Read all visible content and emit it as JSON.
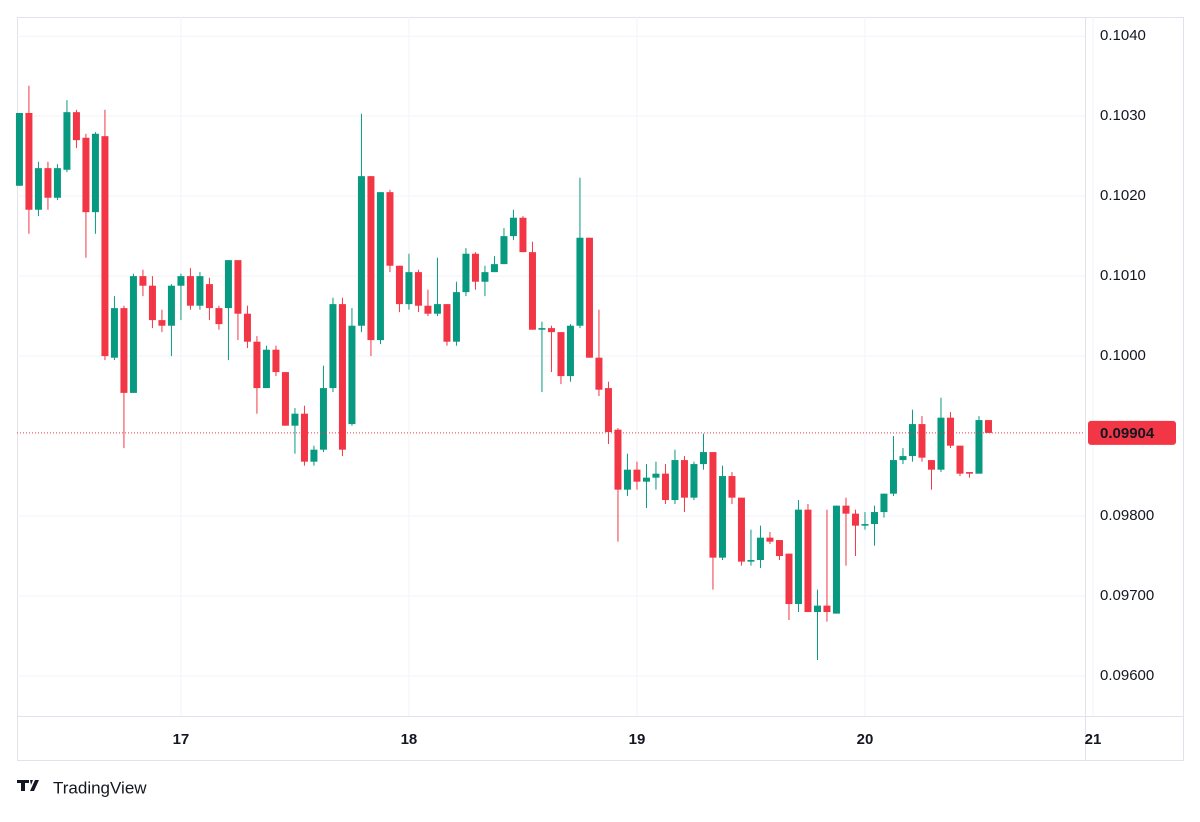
{
  "chart_data": {
    "type": "candlestick",
    "up_color": "#089981",
    "down_color": "#f23645",
    "grid": true,
    "xlim": [
      16.281,
      20.965
    ],
    "xticks": [
      17,
      18,
      19,
      20,
      21
    ],
    "ylim": [
      0.0955,
      0.10424
    ],
    "yticks": [
      {
        "value": 0.096,
        "label": "0.09600"
      },
      {
        "value": 0.097,
        "label": "0.09700"
      },
      {
        "value": 0.098,
        "label": "0.09800"
      },
      {
        "value": 0.1,
        "label": "0.1000"
      },
      {
        "value": 0.101,
        "label": "0.1010"
      },
      {
        "value": 0.102,
        "label": "0.1020"
      },
      {
        "value": 0.103,
        "label": "0.1030"
      },
      {
        "value": 0.104,
        "label": "0.1040"
      }
    ],
    "last_price": 0.09904,
    "x": [
      16.2917,
      16.3333,
      16.375,
      16.4167,
      16.4583,
      16.5,
      16.5417,
      16.5833,
      16.625,
      16.6667,
      16.7083,
      16.75,
      16.7917,
      16.8333,
      16.875,
      16.9167,
      16.9583,
      17,
      17.0417,
      17.0833,
      17.125,
      17.1667,
      17.2083,
      17.25,
      17.2917,
      17.3333,
      17.375,
      17.4167,
      17.4583,
      17.5,
      17.5417,
      17.5833,
      17.625,
      17.6667,
      17.7083,
      17.75,
      17.7917,
      17.8333,
      17.875,
      17.9167,
      17.9583,
      18,
      18.0417,
      18.0833,
      18.125,
      18.1667,
      18.2083,
      18.25,
      18.2917,
      18.3333,
      18.375,
      18.4167,
      18.4583,
      18.5,
      18.5417,
      18.5833,
      18.625,
      18.6667,
      18.7083,
      18.75,
      18.7917,
      18.8333,
      18.875,
      18.9167,
      18.9583,
      19,
      19.0417,
      19.0833,
      19.125,
      19.1667,
      19.2083,
      19.25,
      19.2917,
      19.3333,
      19.375,
      19.4167,
      19.4583,
      19.5,
      19.5417,
      19.5833,
      19.625,
      19.6667,
      19.7083,
      19.75,
      19.7917,
      19.8333,
      19.875,
      19.9167,
      19.9583,
      20,
      20.0417,
      20.0833,
      20.125,
      20.1667,
      20.2083,
      20.25,
      20.2917,
      20.3333,
      20.375,
      20.4167,
      20.4583,
      20.5,
      20.5417
    ],
    "open": [
      0.10213,
      0.10304,
      0.10183,
      0.10235,
      0.10198,
      0.10233,
      0.10305,
      0.10273,
      0.1018,
      0.10275,
      0.09998,
      0.1006,
      0.09954,
      0.101,
      0.10088,
      0.10045,
      0.10038,
      0.10088,
      0.101,
      0.10063,
      0.1009,
      0.1006,
      0.1006,
      0.1012,
      0.10053,
      0.10018,
      0.0996,
      0.10008,
      0.0998,
      0.09913,
      0.09928,
      0.09868,
      0.09883,
      0.0996,
      0.10065,
      0.09915,
      0.10038,
      0.10225,
      0.1002,
      0.10205,
      0.10113,
      0.10065,
      0.10105,
      0.10063,
      0.10053,
      0.10065,
      0.10018,
      0.1008,
      0.10128,
      0.10093,
      0.10105,
      0.10115,
      0.1015,
      0.10173,
      0.1013,
      0.10033,
      0.10035,
      0.1003,
      0.09975,
      0.10038,
      0.10148,
      0.09998,
      0.0996,
      0.09908,
      0.09833,
      0.09858,
      0.09843,
      0.09848,
      0.09853,
      0.0982,
      0.0987,
      0.09823,
      0.09865,
      0.0988,
      0.09748,
      0.0985,
      0.09823,
      0.09743,
      0.09745,
      0.09773,
      0.0977,
      0.09753,
      0.0969,
      0.09808,
      0.0968,
      0.09688,
      0.09678,
      0.09813,
      0.09803,
      0.09788,
      0.0979,
      0.09805,
      0.09828,
      0.0987,
      0.09875,
      0.09915,
      0.0987,
      0.09858,
      0.09923,
      0.09888,
      0.09855,
      0.09853,
      0.0992
    ],
    "high": [
      0.10304,
      0.10338,
      0.10243,
      0.10243,
      0.1024,
      0.1032,
      0.10308,
      0.10278,
      0.1028,
      0.10308,
      0.10075,
      0.10063,
      0.10103,
      0.10108,
      0.101,
      0.10058,
      0.1009,
      0.10103,
      0.1011,
      0.10105,
      0.10098,
      0.10063,
      0.1012,
      0.1012,
      0.10063,
      0.10025,
      0.10013,
      0.10013,
      0.0998,
      0.09935,
      0.09938,
      0.09888,
      0.09988,
      0.10073,
      0.10073,
      0.1006,
      0.10303,
      0.10225,
      0.10205,
      0.10208,
      0.10113,
      0.10128,
      0.10108,
      0.10083,
      0.10123,
      0.10065,
      0.10093,
      0.10135,
      0.1013,
      0.10113,
      0.10125,
      0.1016,
      0.10183,
      0.10175,
      0.10143,
      0.10043,
      0.10038,
      0.1003,
      0.1004,
      0.10223,
      0.10148,
      0.10058,
      0.09968,
      0.0991,
      0.09878,
      0.09868,
      0.09865,
      0.09868,
      0.09865,
      0.09883,
      0.09875,
      0.09868,
      0.09903,
      0.0988,
      0.09863,
      0.09855,
      0.09823,
      0.09783,
      0.09788,
      0.0978,
      0.0977,
      0.09753,
      0.0982,
      0.09815,
      0.09708,
      0.09808,
      0.09813,
      0.09823,
      0.09808,
      0.09805,
      0.09813,
      0.09828,
      0.099,
      0.09885,
      0.09933,
      0.09925,
      0.0987,
      0.09948,
      0.0993,
      0.09888,
      0.09855,
      0.09925,
      0.0992
    ],
    "low": [
      0.10213,
      0.10153,
      0.10175,
      0.10183,
      0.10195,
      0.1023,
      0.1026,
      0.10123,
      0.10153,
      0.09995,
      0.09995,
      0.09885,
      0.09954,
      0.10075,
      0.10035,
      0.1003,
      0.1,
      0.10045,
      0.10058,
      0.10058,
      0.10045,
      0.10033,
      0.09995,
      0.1002,
      0.1001,
      0.09928,
      0.0996,
      0.09975,
      0.09913,
      0.09878,
      0.09863,
      0.09863,
      0.0988,
      0.09955,
      0.09875,
      0.09913,
      0.1003,
      0.1,
      0.10015,
      0.10105,
      0.10055,
      0.10058,
      0.10055,
      0.1005,
      0.1005,
      0.10013,
      0.10013,
      0.10075,
      0.10083,
      0.10075,
      0.10105,
      0.10115,
      0.10145,
      0.1013,
      0.10033,
      0.09955,
      0.0998,
      0.09965,
      0.09968,
      0.10035,
      0.09998,
      0.0995,
      0.0989,
      0.09768,
      0.09825,
      0.09833,
      0.0981,
      0.09833,
      0.09815,
      0.09815,
      0.09805,
      0.0982,
      0.09858,
      0.09708,
      0.09745,
      0.09815,
      0.09738,
      0.09738,
      0.09735,
      0.09765,
      0.09745,
      0.0967,
      0.0968,
      0.0968,
      0.0962,
      0.09668,
      0.09678,
      0.09738,
      0.0975,
      0.09783,
      0.09763,
      0.09798,
      0.09825,
      0.09865,
      0.09868,
      0.09868,
      0.09833,
      0.09855,
      0.09885,
      0.0985,
      0.09848,
      0.09853,
      0.09904
    ],
    "close": [
      0.10304,
      0.10183,
      0.10235,
      0.10198,
      0.10235,
      0.10305,
      0.1027,
      0.1018,
      0.10278,
      0.1,
      0.1006,
      0.09954,
      0.101,
      0.10088,
      0.10045,
      0.10038,
      0.10088,
      0.101,
      0.10063,
      0.101,
      0.1006,
      0.1004,
      0.1012,
      0.10053,
      0.10018,
      0.0996,
      0.10008,
      0.0998,
      0.09913,
      0.09928,
      0.09868,
      0.09883,
      0.0996,
      0.10065,
      0.09883,
      0.10038,
      0.10225,
      0.1002,
      0.10205,
      0.10113,
      0.10065,
      0.10105,
      0.10063,
      0.10053,
      0.10065,
      0.10018,
      0.1008,
      0.10128,
      0.10093,
      0.10105,
      0.10115,
      0.1015,
      0.10173,
      0.1013,
      0.10033,
      0.10035,
      0.1003,
      0.09975,
      0.10038,
      0.10148,
      0.09998,
      0.09958,
      0.09905,
      0.09833,
      0.09858,
      0.09843,
      0.09848,
      0.09853,
      0.0982,
      0.0987,
      0.09823,
      0.09865,
      0.0988,
      0.09748,
      0.0985,
      0.09823,
      0.09743,
      0.09745,
      0.09773,
      0.09768,
      0.0975,
      0.0969,
      0.09808,
      0.0968,
      0.09688,
      0.0968,
      0.09813,
      0.09803,
      0.09788,
      0.0979,
      0.09805,
      0.09828,
      0.0987,
      0.09875,
      0.09915,
      0.09873,
      0.09858,
      0.09923,
      0.09888,
      0.09853,
      0.09853,
      0.0992,
      0.09904
    ]
  },
  "footer": {
    "brand": "TradingView"
  }
}
